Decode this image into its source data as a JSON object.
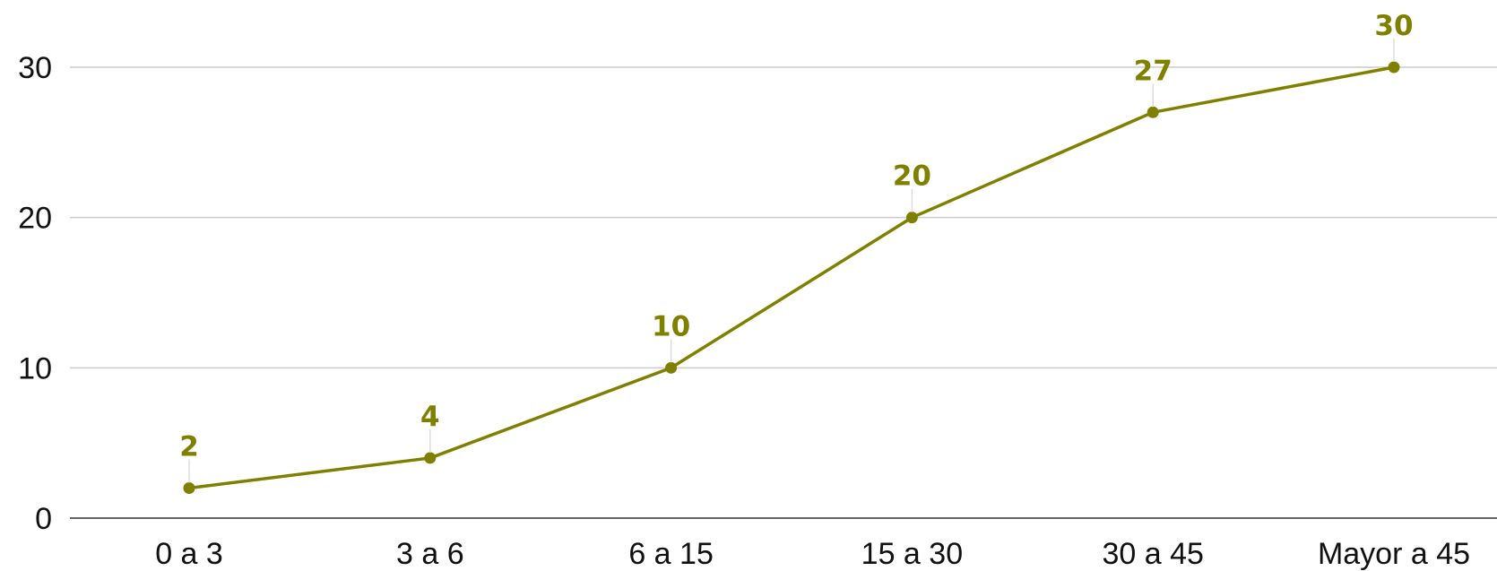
{
  "chart_data": {
    "type": "line",
    "title": "",
    "xlabel": "",
    "ylabel": "",
    "categories": [
      "0 a 3",
      "3 a 6",
      "6 a 15",
      "15 a 30",
      "30 a 45",
      "Mayor a 45"
    ],
    "series": [
      {
        "values": [
          2,
          4,
          10,
          20,
          27,
          30
        ],
        "color": "#808000"
      }
    ],
    "ylim": [
      0,
      30
    ],
    "yticks": [
      0,
      10,
      20,
      30
    ],
    "grid": true,
    "legend": "none",
    "data_labels": true
  }
}
